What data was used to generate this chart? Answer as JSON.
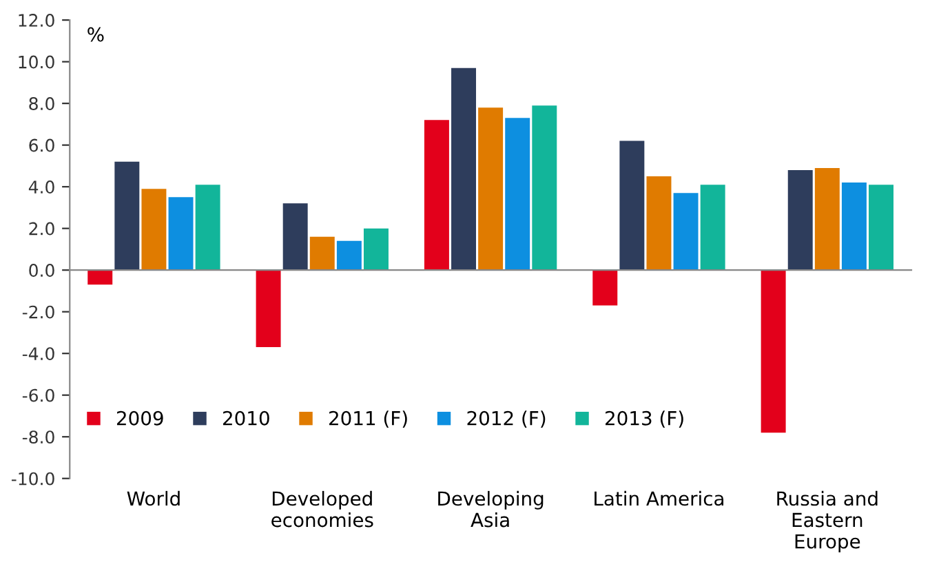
{
  "chart_data": {
    "type": "bar",
    "ylabel": "%",
    "categories": [
      "World",
      "Developed\neconomies",
      "Developing\nAsia",
      "Latin America",
      "Russia and\nEastern\nEurope"
    ],
    "series": [
      {
        "name": "2009",
        "color": "#e3001b",
        "values": [
          -0.7,
          -3.7,
          7.2,
          -1.7,
          -7.8
        ]
      },
      {
        "name": "2010",
        "color": "#2e3d5c",
        "values": [
          5.2,
          3.2,
          9.7,
          6.2,
          4.8
        ]
      },
      {
        "name": "2011 (F)",
        "color": "#e07b00",
        "values": [
          3.9,
          1.6,
          7.8,
          4.5,
          4.9
        ]
      },
      {
        "name": "2012 (F)",
        "color": "#0d8fe0",
        "values": [
          3.5,
          1.4,
          7.3,
          3.7,
          4.2
        ]
      },
      {
        "name": "2013 (F)",
        "color": "#12b59a",
        "values": [
          4.1,
          2.0,
          7.9,
          4.1,
          4.1
        ]
      }
    ],
    "ylim": [
      -10,
      12
    ],
    "yticks": [
      {
        "value": -10,
        "label": "-10.0"
      },
      {
        "value": -8,
        "label": "-8.0"
      },
      {
        "value": -6,
        "label": "-6.0"
      },
      {
        "value": -4,
        "label": "-4.0"
      },
      {
        "value": -2,
        "label": "-2.0"
      },
      {
        "value": 0,
        "label": "0.0"
      },
      {
        "value": 2,
        "label": "2.0"
      },
      {
        "value": 4,
        "label": "4.0"
      },
      {
        "value": 6,
        "label": "6.0"
      },
      {
        "value": 8,
        "label": "8.0"
      },
      {
        "value": 10,
        "label": "10.0"
      },
      {
        "value": 12,
        "label": "12.0"
      }
    ],
    "legend": "bottom left"
  }
}
